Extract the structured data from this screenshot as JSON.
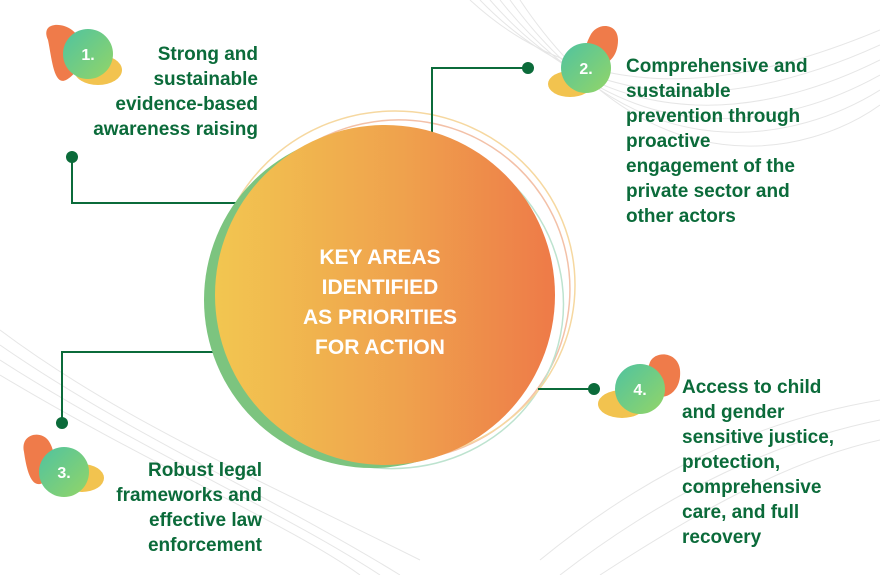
{
  "center": {
    "title": "KEY AREAS\nIDENTIFIED\nAS PRIORITIES\nFOR ACTION"
  },
  "priorities": [
    {
      "number": "1.",
      "text": "Strong and\nsustainable\nevidence-based\nawareness raising"
    },
    {
      "number": "2.",
      "text": "Comprehensive and\nsustainable\nprevention through\nproactive\nengagement of the\nprivate sector and\nother actors"
    },
    {
      "number": "3.",
      "text": "Robust legal\nframeworks and\neffective law\nenforcement"
    },
    {
      "number": "4.",
      "text": "Access to child\nand gender\nsensitive justice,\nprotection,\ncomprehensive\ncare, and full\nrecovery"
    }
  ],
  "colors": {
    "text_green": "#0b6b3a",
    "connector_green": "#0b6b3a",
    "center_gradient_start": "#f0c24e",
    "center_gradient_end": "#ee7e4a",
    "center_shadow": "#7cc47f",
    "badge_gradient_start": "#5cc89c",
    "badge_gradient_end": "#8bd26a",
    "blob_orange": "#ef7b4a",
    "blob_yellow": "#f2c34f"
  }
}
